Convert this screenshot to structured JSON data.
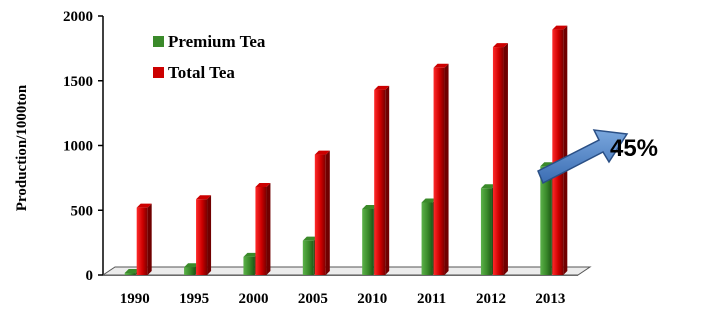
{
  "chart_data": {
    "type": "bar",
    "ylabel": "Production/1000ton",
    "categories": [
      "1990",
      "1995",
      "2000",
      "2005",
      "2010",
      "2011",
      "2012",
      "2013"
    ],
    "ylim": [
      0,
      2000
    ],
    "yticks": [
      0,
      500,
      1000,
      1500,
      2000
    ],
    "legend_position": "top-left",
    "grid": false,
    "series": [
      {
        "name": "Premium Tea",
        "color": "#3a8a2a",
        "values": [
          15,
          60,
          140,
          265,
          510,
          560,
          670,
          840
        ]
      },
      {
        "name": "Total Tea",
        "color": "#cc0000",
        "values": [
          520,
          585,
          680,
          930,
          1430,
          1600,
          1760,
          1895
        ]
      }
    ],
    "annotation": {
      "text": "45%",
      "icon": "arrow-icon"
    }
  }
}
